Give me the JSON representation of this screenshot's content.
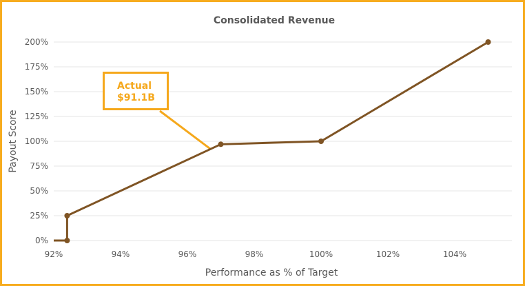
{
  "chart_data": {
    "type": "line",
    "title": "Consolidated Revenue",
    "xlabel": "Performance as % of Target",
    "ylabel": "Payout Score",
    "xlim": [
      92,
      105
    ],
    "ylim": [
      0,
      200
    ],
    "x_ticks": [
      "92%",
      "94%",
      "96%",
      "98%",
      "100%",
      "102%",
      "104%"
    ],
    "x_tick_values": [
      92,
      94,
      96,
      98,
      100,
      102,
      104
    ],
    "y_ticks": [
      "0%",
      "25%",
      "50%",
      "75%",
      "100%",
      "125%",
      "150%",
      "175%",
      "200%"
    ],
    "y_tick_values": [
      0,
      25,
      50,
      75,
      100,
      125,
      150,
      175,
      200
    ],
    "grid": "horizontal",
    "series": [
      {
        "x": [
          92,
          92.4,
          92.4,
          97,
          100,
          105
        ],
        "y": [
          0,
          0,
          25,
          97,
          100,
          200
        ],
        "markers": [
          false,
          true,
          true,
          true,
          true,
          true
        ]
      }
    ],
    "annotation": {
      "lines": [
        "Actual",
        "$91.1B"
      ],
      "points_to": {
        "x": 96.7,
        "y": 92
      }
    },
    "colors": {
      "line": "#7f5424",
      "annotation": "#f5a81c",
      "border": "#f7ac1f",
      "grid": "#e6e6e6"
    }
  }
}
